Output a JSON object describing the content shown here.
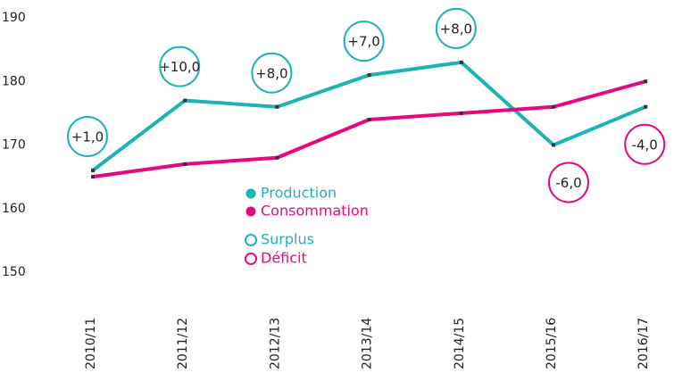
{
  "chart_data": {
    "type": "line",
    "categories": [
      "2010/11",
      "2011/12",
      "2012/13",
      "2013/14",
      "2014/15",
      "2015/16",
      "2016/17"
    ],
    "series": [
      {
        "name": "Production",
        "color": "#1db3b5",
        "values": [
          166,
          177,
          176,
          181,
          183,
          170,
          176
        ]
      },
      {
        "name": "Consommation",
        "color": "#e5097f",
        "values": [
          165,
          167,
          168,
          174,
          175,
          176,
          180
        ]
      }
    ],
    "balance": {
      "positive_name": "Surplus",
      "negative_name": "Déficit",
      "values": [
        1,
        10,
        8,
        7,
        8,
        -6,
        -4
      ],
      "value_labels": [
        "+1,0",
        "+10,0",
        "+8,0",
        "+7,0",
        "+8,0",
        "-6,0",
        "-4,0"
      ]
    },
    "ylim": [
      150,
      190
    ],
    "yticks": [
      150,
      160,
      170,
      180,
      190
    ],
    "grid": false
  }
}
